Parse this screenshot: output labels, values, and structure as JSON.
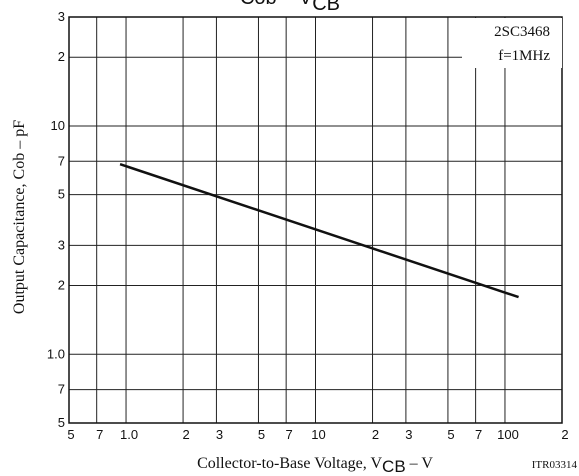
{
  "chart_data": {
    "type": "line",
    "title": "Cob – V",
    "title_sub": "CB",
    "x_label": "Collector-to-Base Voltage, V",
    "x_label_sub": "CB",
    "x_label_unit": " –  V",
    "y_label": "Output Capacitance,  Cob  –  pF",
    "annotations": [
      "2SC3468",
      "f=1MHz",
      "ITR03314"
    ],
    "x_log": true,
    "y_log": true,
    "grid": true,
    "xlim": [
      0.5,
      200
    ],
    "ylim": [
      0.5,
      30
    ],
    "xticks": [
      {
        "value": 0.5,
        "label": "5"
      },
      {
        "value": 0.7,
        "label": "7"
      },
      {
        "value": 1,
        "label": "1.0"
      },
      {
        "value": 2,
        "label": "2"
      },
      {
        "value": 3,
        "label": "3"
      },
      {
        "value": 5,
        "label": "5"
      },
      {
        "value": 7,
        "label": "7"
      },
      10,
      {
        "value": 20,
        "label": "2"
      },
      {
        "value": 30,
        "label": "3"
      },
      {
        "value": 50,
        "label": "5"
      },
      {
        "value": 70,
        "label": "7"
      },
      100,
      {
        "value": 200,
        "label": "2"
      }
    ],
    "yticks": [
      {
        "value": 0.5,
        "label": "5"
      },
      {
        "value": 0.7,
        "label": "7"
      },
      {
        "value": 1,
        "label": "1.0"
      },
      2,
      3,
      5,
      7,
      10,
      {
        "value": 20,
        "label": "2"
      },
      {
        "value": 30,
        "label": "3"
      }
    ],
    "series": [
      {
        "color": "#111111",
        "x": [
          0.93,
          118
        ],
        "values": [
          6.8,
          1.78
        ]
      }
    ]
  }
}
